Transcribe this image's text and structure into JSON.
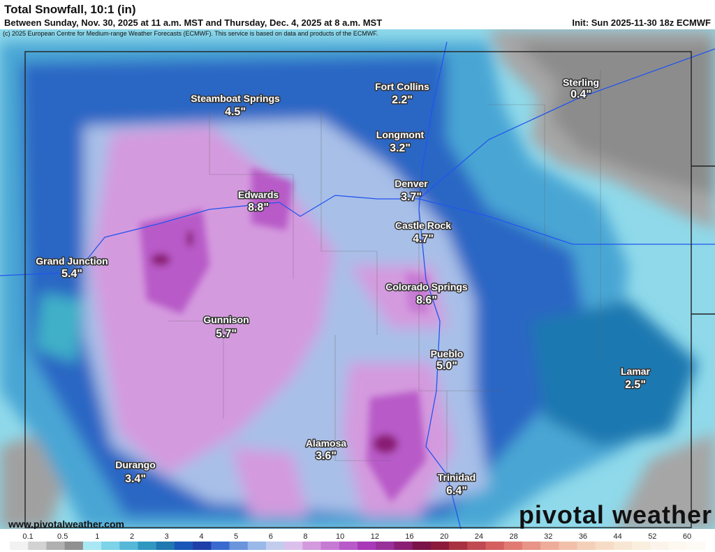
{
  "header": {
    "title": "Total Snowfall, 10:1 (in)",
    "subtitle": "Between Sunday, Nov. 30, 2025 at 11 a.m. MST and Thursday, Dec. 4, 2025 at 8 a.m. MST",
    "init": "Init: Sun 2025-11-30 18z ECMWF",
    "copyright": "(c) 2025 European Centre for Medium-range Weather Forecasts (ECMWF). This service is based on data and products of the ECMWF."
  },
  "cities": [
    {
      "name": "Steamboat Springs",
      "value": "4.5\""
    },
    {
      "name": "Fort Collins",
      "value": "2.2\""
    },
    {
      "name": "Sterling",
      "value": "0.4\""
    },
    {
      "name": "Longmont",
      "value": "3.2\""
    },
    {
      "name": "Edwards",
      "value": "8.8\""
    },
    {
      "name": "Denver",
      "value": "3.7\""
    },
    {
      "name": "Castle Rock",
      "value": "4.7\""
    },
    {
      "name": "Grand Junction",
      "value": "5.4\""
    },
    {
      "name": "Colorado Springs",
      "value": "8.6\""
    },
    {
      "name": "Gunnison",
      "value": "5.7\""
    },
    {
      "name": "Pueblo",
      "value": "5.0\""
    },
    {
      "name": "Lamar",
      "value": "2.5\""
    },
    {
      "name": "Alamosa",
      "value": "3.6\""
    },
    {
      "name": "Durango",
      "value": "3.4\""
    },
    {
      "name": "Trinidad",
      "value": "6.4\""
    }
  ],
  "footer": {
    "url": "www.pivotalweather.com",
    "brand": "pivotal weather"
  },
  "legend": {
    "labels": [
      "0.1",
      "0.5",
      "1",
      "2",
      "3",
      "4",
      "5",
      "6",
      "8",
      "10",
      "12",
      "16",
      "20",
      "24",
      "28",
      "32",
      "36",
      "44",
      "52",
      "60"
    ],
    "colors": [
      "#f2f2f2",
      "#d2d2d2",
      "#b0b0b0",
      "#909090",
      "#a8e8f4",
      "#7dd3e8",
      "#55b8d8",
      "#3098c0",
      "#1f78b0",
      "#1a56b8",
      "#1f3fa8",
      "#3a6ad0",
      "#6a94dc",
      "#9ab8e8",
      "#c2cdee",
      "#dcc0ec",
      "#d49ade",
      "#c77ad4",
      "#b85ac8",
      "#a83ab8",
      "#98309a",
      "#8a1f74",
      "#7a1448",
      "#8c1a3a",
      "#a83242",
      "#c04a52",
      "#d46060",
      "#e07a72",
      "#e89488",
      "#eeac9a",
      "#f2c0aa",
      "#f4d0b8",
      "#f6dcc6",
      "#f8e6d4",
      "#faeedf",
      "#fcf4ea",
      "#fdf8f0",
      "#fefbf6"
    ]
  }
}
